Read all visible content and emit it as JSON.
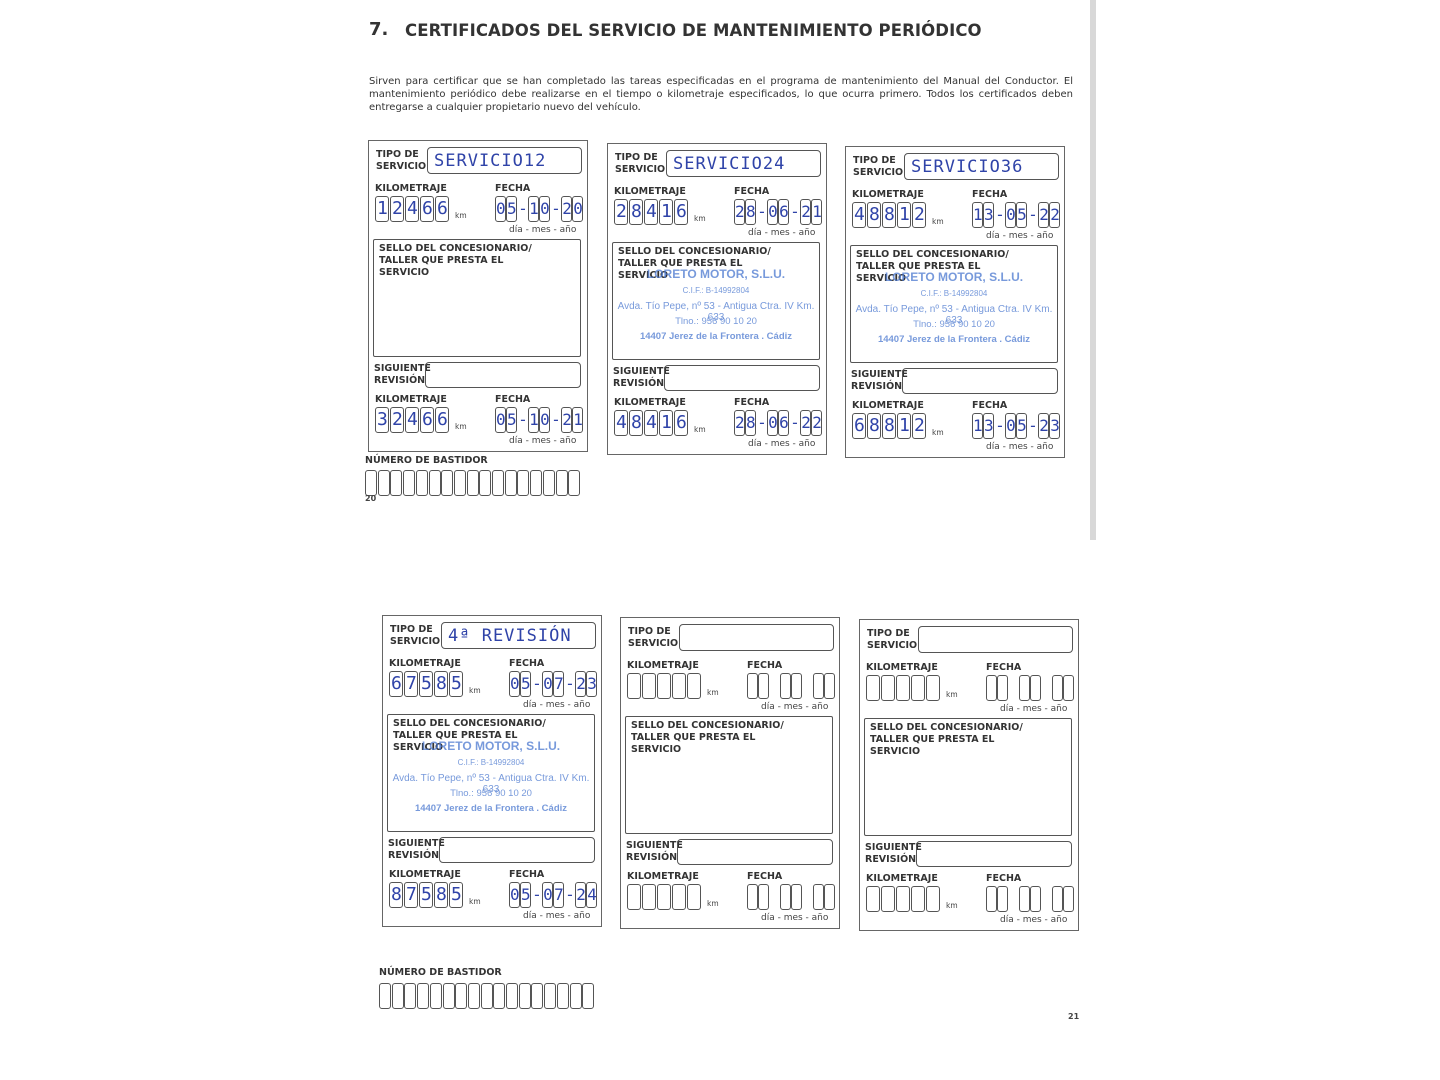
{
  "header": {
    "number": "7.",
    "title": "CERTIFICADOS DEL SERVICIO DE MANTENIMIENTO PERIÓDICO"
  },
  "intro": "Sirven para certificar que se han completado las tareas especificadas en el programa de mantenimiento del Manual del Conductor. El mantenimiento periódico debe realizarse en el tiempo o kilometraje especificados, lo que ocurra primero. Todos los certificados deben entregarse a cualquier propietario nuevo del vehículo.",
  "labels": {
    "tipo": "TIPO DE SERVICIO",
    "kilometraje": "KILOMETRAJE",
    "fecha": "FECHA",
    "km": "km",
    "date_format": "día - mes - año",
    "sello": "SELLO DEL CONCESIONARIO/ TALLER QUE PRESTA EL SERVICIO",
    "siguiente": "SIGUIENTE REVISIÓN",
    "bastidor": "NÚMERO DE BASTIDOR"
  },
  "pages": [
    {
      "number": "20",
      "cards": [
        {
          "tipo": "SERVICIO12",
          "kilometraje": "12466",
          "fecha": "05-10-20",
          "siguiente": {
            "kilometraje": "32466",
            "fecha": "05-10-21"
          }
        },
        {
          "tipo": "SERVICIO24",
          "kilometraje": "28416",
          "fecha": "28-06-21",
          "stamp": [
            "LORETO MOTOR, S.L.U.",
            "C.I.F.: B-14992804",
            "Avda. Tío Pepe, nº 53 - Antigua Ctra. IV Km. 633",
            "Tlno.: 956 90 10 20",
            "14407 Jerez de la Frontera . Cádiz"
          ],
          "siguiente": {
            "kilometraje": "48416",
            "fecha": "28-06-22"
          }
        },
        {
          "tipo": "SERVICIO36",
          "kilometraje": "48812",
          "fecha": "13-05-22",
          "stamp": [
            "LORETO MOTOR, S.L.U.",
            "C.I.F.: B-14992804",
            "Avda. Tío Pepe, nº 53 - Antigua Ctra. IV Km. 633",
            "Tlno.: 956 90 10 20",
            "14407 Jerez de la Frontera . Cádiz"
          ],
          "siguiente": {
            "kilometraje": "68812",
            "fecha": "13-05-23"
          }
        }
      ]
    },
    {
      "number": "21",
      "cards": [
        {
          "tipo": "4ª REVISIÓN",
          "kilometraje": "67585",
          "fecha": "05-07-23",
          "stamp": [
            "LORETO MOTOR, S.L.U.",
            "C.I.F.: B-14992804",
            "Avda. Tío Pepe, nº 53 - Antigua Ctra. IV Km. 633",
            "Tlno.: 956 90 10 20",
            "14407 Jerez de la Frontera . Cádiz"
          ],
          "siguiente": {
            "kilometraje": "87585",
            "fecha": "05-07-24"
          }
        },
        {},
        {}
      ]
    }
  ]
}
